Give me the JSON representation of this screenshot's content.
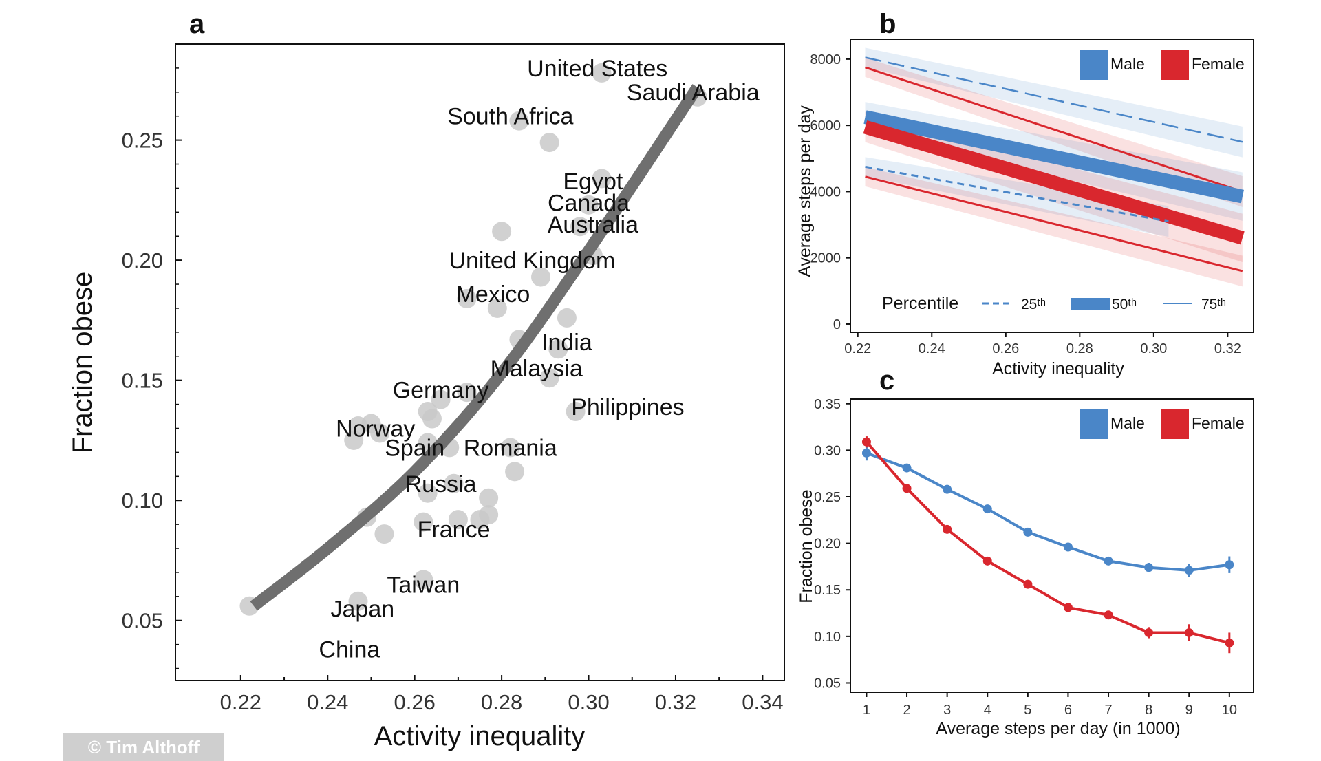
{
  "credit": "© Tim Althoff",
  "chart_data": [
    {
      "panel": "a",
      "type": "scatter",
      "xlabel": "Activity inequality",
      "ylabel": "Fraction obese",
      "xlim": [
        0.205,
        0.345
      ],
      "ylim": [
        0.025,
        0.29
      ],
      "xticks": [
        0.22,
        0.24,
        0.26,
        0.28,
        0.3,
        0.32,
        0.34
      ],
      "yticks": [
        0.05,
        0.1,
        0.15,
        0.2,
        0.25
      ],
      "tick_labels_x": [
        "0.22",
        "0.24",
        "0.26",
        "0.28",
        "0.30",
        "0.32",
        "0.34"
      ],
      "tick_labels_y": [
        "0.05",
        "0.10",
        "0.15",
        "0.20",
        "0.25"
      ],
      "points": [
        {
          "x": 0.303,
          "y": 0.278
        },
        {
          "x": 0.284,
          "y": 0.258
        },
        {
          "x": 0.291,
          "y": 0.249
        },
        {
          "x": 0.325,
          "y": 0.268
        },
        {
          "x": 0.303,
          "y": 0.234
        },
        {
          "x": 0.3,
          "y": 0.223
        },
        {
          "x": 0.298,
          "y": 0.214
        },
        {
          "x": 0.28,
          "y": 0.212
        },
        {
          "x": 0.301,
          "y": 0.202
        },
        {
          "x": 0.289,
          "y": 0.193
        },
        {
          "x": 0.272,
          "y": 0.184
        },
        {
          "x": 0.279,
          "y": 0.18
        },
        {
          "x": 0.295,
          "y": 0.176
        },
        {
          "x": 0.284,
          "y": 0.167
        },
        {
          "x": 0.293,
          "y": 0.163
        },
        {
          "x": 0.291,
          "y": 0.151
        },
        {
          "x": 0.272,
          "y": 0.145
        },
        {
          "x": 0.266,
          "y": 0.142
        },
        {
          "x": 0.263,
          "y": 0.137
        },
        {
          "x": 0.297,
          "y": 0.137
        },
        {
          "x": 0.264,
          "y": 0.134
        },
        {
          "x": 0.25,
          "y": 0.132
        },
        {
          "x": 0.247,
          "y": 0.131
        },
        {
          "x": 0.252,
          "y": 0.128
        },
        {
          "x": 0.246,
          "y": 0.125
        },
        {
          "x": 0.263,
          "y": 0.124
        },
        {
          "x": 0.268,
          "y": 0.122
        },
        {
          "x": 0.282,
          "y": 0.122
        },
        {
          "x": 0.283,
          "y": 0.112
        },
        {
          "x": 0.269,
          "y": 0.107
        },
        {
          "x": 0.263,
          "y": 0.103
        },
        {
          "x": 0.277,
          "y": 0.101
        },
        {
          "x": 0.249,
          "y": 0.093
        },
        {
          "x": 0.262,
          "y": 0.091
        },
        {
          "x": 0.27,
          "y": 0.092
        },
        {
          "x": 0.275,
          "y": 0.092
        },
        {
          "x": 0.277,
          "y": 0.094
        },
        {
          "x": 0.253,
          "y": 0.086
        },
        {
          "x": 0.262,
          "y": 0.067
        },
        {
          "x": 0.247,
          "y": 0.058
        },
        {
          "x": 0.222,
          "y": 0.056
        }
      ],
      "labels": [
        {
          "text": "United States",
          "x": 0.302,
          "y": 0.28
        },
        {
          "text": "South Africa",
          "x": 0.282,
          "y": 0.26
        },
        {
          "text": "Saudi Arabia",
          "x": 0.324,
          "y": 0.27
        },
        {
          "text": "Egypt",
          "x": 0.301,
          "y": 0.233
        },
        {
          "text": "Canada",
          "x": 0.3,
          "y": 0.224
        },
        {
          "text": "Australia",
          "x": 0.301,
          "y": 0.215
        },
        {
          "text": "United Kingdom",
          "x": 0.287,
          "y": 0.2
        },
        {
          "text": "Mexico",
          "x": 0.278,
          "y": 0.186
        },
        {
          "text": "India",
          "x": 0.295,
          "y": 0.166
        },
        {
          "text": "Malaysia",
          "x": 0.288,
          "y": 0.155
        },
        {
          "text": "Germany",
          "x": 0.266,
          "y": 0.146
        },
        {
          "text": "Philippines",
          "x": 0.309,
          "y": 0.139
        },
        {
          "text": "Norway",
          "x": 0.251,
          "y": 0.13
        },
        {
          "text": "Spain",
          "x": 0.26,
          "y": 0.122
        },
        {
          "text": "Romania",
          "x": 0.282,
          "y": 0.122
        },
        {
          "text": "Russia",
          "x": 0.266,
          "y": 0.107
        },
        {
          "text": "France",
          "x": 0.269,
          "y": 0.088
        },
        {
          "text": "Taiwan",
          "x": 0.262,
          "y": 0.065
        },
        {
          "text": "Japan",
          "x": 0.248,
          "y": 0.055
        },
        {
          "text": "China",
          "x": 0.245,
          "y": 0.038
        }
      ],
      "fit_curve": {
        "x": [
          0.223,
          0.24,
          0.26,
          0.28,
          0.3,
          0.325
        ],
        "y": [
          0.056,
          0.08,
          0.112,
          0.153,
          0.204,
          0.272
        ]
      }
    },
    {
      "panel": "b",
      "type": "line",
      "xlabel": "Activity inequality",
      "ylabel": "Average steps per day",
      "xlim": [
        0.218,
        0.327
      ],
      "ylim": [
        -250,
        8600
      ],
      "xticks": [
        0.22,
        0.24,
        0.26,
        0.28,
        0.3,
        0.32
      ],
      "yticks": [
        0,
        2000,
        4000,
        6000,
        8000
      ],
      "tick_labels_x": [
        "0.22",
        "0.24",
        "0.26",
        "0.28",
        "0.30",
        "0.32"
      ],
      "tick_labels_y": [
        "0",
        "2000",
        "4000",
        "6000",
        "8000"
      ],
      "legend_sex": [
        "Male",
        "Female"
      ],
      "legend_percentile_title": "Percentile",
      "legend_percentile": [
        "25ᵗʰ",
        "50ᵗʰ",
        "75ᵗʰ"
      ],
      "series": [
        {
          "sex": "Male",
          "percentile": "75th",
          "x": [
            0.222,
            0.324
          ],
          "y": [
            8050,
            5500
          ]
        },
        {
          "sex": "Female",
          "percentile": "75th",
          "x": [
            0.222,
            0.324
          ],
          "y": [
            7750,
            4000
          ]
        },
        {
          "sex": "Male",
          "percentile": "50th",
          "x": [
            0.222,
            0.324
          ],
          "y": [
            6250,
            3850
          ]
        },
        {
          "sex": "Female",
          "percentile": "50th",
          "x": [
            0.222,
            0.324
          ],
          "y": [
            5950,
            2600
          ]
        },
        {
          "sex": "Male",
          "percentile": "25th",
          "x": [
            0.222,
            0.304
          ],
          "y": [
            4750,
            3100
          ]
        },
        {
          "sex": "Female",
          "percentile": "25th",
          "x": [
            0.222,
            0.324
          ],
          "y": [
            4450,
            1600
          ]
        }
      ],
      "colors": {
        "Male": "#4a86c8",
        "Female": "#d9272e"
      }
    },
    {
      "panel": "c",
      "type": "line",
      "xlabel": "Average steps per day (in 1000)",
      "ylabel": "Fraction obese",
      "xlim": [
        0.6,
        10.6
      ],
      "ylim": [
        0.04,
        0.355
      ],
      "xticks": [
        1,
        2,
        3,
        4,
        5,
        6,
        7,
        8,
        9,
        10
      ],
      "yticks": [
        0.05,
        0.1,
        0.15,
        0.2,
        0.25,
        0.3,
        0.35
      ],
      "tick_labels_x": [
        "1",
        "2",
        "3",
        "4",
        "5",
        "6",
        "7",
        "8",
        "9",
        "10"
      ],
      "tick_labels_y": [
        "0.05",
        "0.10",
        "0.15",
        "0.20",
        "0.25",
        "0.30",
        "0.35"
      ],
      "legend": [
        "Male",
        "Female"
      ],
      "series": [
        {
          "name": "Male",
          "x": [
            1,
            2,
            3,
            4,
            5,
            6,
            7,
            8,
            9,
            10
          ],
          "y": [
            0.297,
            0.281,
            0.258,
            0.237,
            0.212,
            0.196,
            0.181,
            0.174,
            0.171,
            0.177
          ],
          "err": [
            0.008,
            0.004,
            0.003,
            0.003,
            0.003,
            0.003,
            0.003,
            0.005,
            0.007,
            0.009
          ]
        },
        {
          "name": "Female",
          "x": [
            1,
            2,
            3,
            4,
            5,
            6,
            7,
            8,
            9,
            10
          ],
          "y": [
            0.309,
            0.259,
            0.215,
            0.181,
            0.156,
            0.131,
            0.123,
            0.104,
            0.104,
            0.093
          ],
          "err": [
            0.006,
            0.004,
            0.003,
            0.003,
            0.003,
            0.003,
            0.004,
            0.006,
            0.009,
            0.011
          ]
        }
      ],
      "colors": {
        "Male": "#4a86c8",
        "Female": "#d9272e"
      }
    }
  ],
  "panel_letters": [
    "a",
    "b",
    "c"
  ]
}
